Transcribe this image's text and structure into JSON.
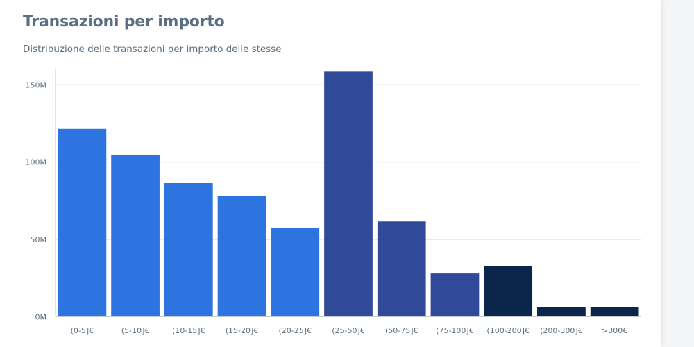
{
  "header": {
    "title": "Transazioni per importo",
    "subtitle": "Distribuzione delle transazioni per importo delle stesse"
  },
  "chart_data": {
    "type": "bar",
    "title": "Transazioni per importo",
    "subtitle": "Distribuzione delle transazioni per importo delle stesse",
    "xlabel": "",
    "ylabel": "",
    "categories": [
      "(0-5]€",
      "(5-10]€",
      "(10-15]€",
      "(15-20]€",
      "(20-25]€",
      "(25-50]€",
      "(50-75]€",
      "(75-100]€",
      "(100-200]€",
      "(200-300]€",
      ">300€"
    ],
    "values": [
      121500000,
      104800000,
      86500000,
      78200000,
      57400000,
      158500000,
      61600000,
      28000000,
      32800000,
      6500000,
      6200000
    ],
    "bar_colors": [
      "#2e74e0",
      "#2e74e0",
      "#2e74e0",
      "#2e74e0",
      "#2e74e0",
      "#304a99",
      "#304a99",
      "#304a99",
      "#0c254a",
      "#0c254a",
      "#0c254a"
    ],
    "yticks": [
      0,
      50000000,
      100000000,
      150000000
    ],
    "ytick_labels": [
      "0M",
      "50M",
      "100M",
      "150M"
    ],
    "ylim": [
      0,
      160000000
    ],
    "grid": true,
    "legend": "none"
  },
  "colors": {
    "title": "#5c6f82",
    "grid": "#d9dde3",
    "axis": "#c5cad2"
  }
}
